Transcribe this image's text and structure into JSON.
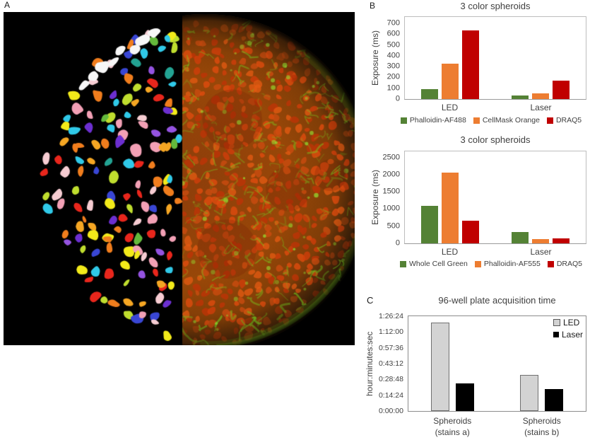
{
  "panels": {
    "a": {
      "label": "A",
      "description": "Spheroid microscopy: left half nuclei segmentation mask (random color labels on black), right half two-color fluorescence (red nuclei, green membrane web)",
      "background": "#000000",
      "segmentation_colors": [
        "#e8261c",
        "#f07d1d",
        "#f5a623",
        "#f2ea1a",
        "#bfdd2e",
        "#64b93c",
        "#23a393",
        "#30c9e8",
        "#3946d4",
        "#6c2fd0",
        "#9453e0",
        "#f2a0b5",
        "#f6ccd2",
        "#e8261c",
        "#f07d1d",
        "#f2ea1a",
        "#30c9e8",
        "#f2a0b5"
      ],
      "segmentation_rim_color": "#f7f7f7",
      "fluorescence_nucleus_colors": [
        "#d23d0a",
        "#e14b0e",
        "#bf3307",
        "#cc4b10",
        "#e35a12"
      ],
      "fluorescence_membrane_color": "#78c81e",
      "fluorescence_base_color": "#93450b"
    },
    "b": {
      "label": "B"
    },
    "c": {
      "label": "C"
    }
  },
  "chart_data": [
    {
      "type": "bar",
      "title": "3 color spheroids",
      "ylabel": "Exposure (ms)",
      "categories": [
        "LED",
        "Laser"
      ],
      "series": [
        {
          "name": "Phalloidin-AF488",
          "color": "#548235",
          "values": [
            90,
            35
          ]
        },
        {
          "name": "CellMask Orange",
          "color": "#ED7D31",
          "values": [
            330,
            50
          ]
        },
        {
          "name": "DRAQ5",
          "color": "#C00000",
          "values": [
            635,
            170
          ]
        }
      ],
      "yticks": [
        0,
        100,
        200,
        300,
        400,
        500,
        600,
        700
      ],
      "ymax": 760,
      "grid": false,
      "legend_position": "bottom"
    },
    {
      "type": "bar",
      "title": "3 color spheroids",
      "ylabel": "Exposure (ms)",
      "categories": [
        "LED",
        "Laser"
      ],
      "series": [
        {
          "name": "Whole Cell Green",
          "color": "#548235",
          "values": [
            1090,
            340
          ]
        },
        {
          "name": "Phalloidin-AF555",
          "color": "#ED7D31",
          "values": [
            2060,
            120
          ]
        },
        {
          "name": "DRAQ5",
          "color": "#C00000",
          "values": [
            660,
            135
          ]
        }
      ],
      "yticks": [
        0,
        500,
        1000,
        1500,
        2000,
        2500
      ],
      "ymax": 2680,
      "grid": false,
      "legend_position": "bottom"
    },
    {
      "type": "bar",
      "title": "96-well plate acquisition time",
      "ylabel": "hour:minutes:sec",
      "categories": [
        [
          "Spheroids",
          "(stains a)"
        ],
        [
          "Spheroids",
          "(stains b)"
        ]
      ],
      "series": [
        {
          "name": "LED",
          "color": "#D3D3D3",
          "border_color": "#707070",
          "values": [
            4820,
            1990
          ],
          "values_hms": [
            "1:20:20",
            "0:33:10"
          ]
        },
        {
          "name": "Laser",
          "color": "#000000",
          "values": [
            1500,
            1200
          ],
          "values_hms": [
            "0:25:00",
            "0:20:00"
          ]
        }
      ],
      "ytick_values": [
        0,
        864,
        1728,
        2592,
        3456,
        4320,
        5184
      ],
      "ytick_labels": [
        "0:00:00",
        "0:14:24",
        "0:28:48",
        "0:43:12",
        "0:57:36",
        "1:12:00",
        "1:26:24"
      ],
      "ymax": 5184,
      "grid": false,
      "legend_position": "inside-top-right"
    }
  ]
}
